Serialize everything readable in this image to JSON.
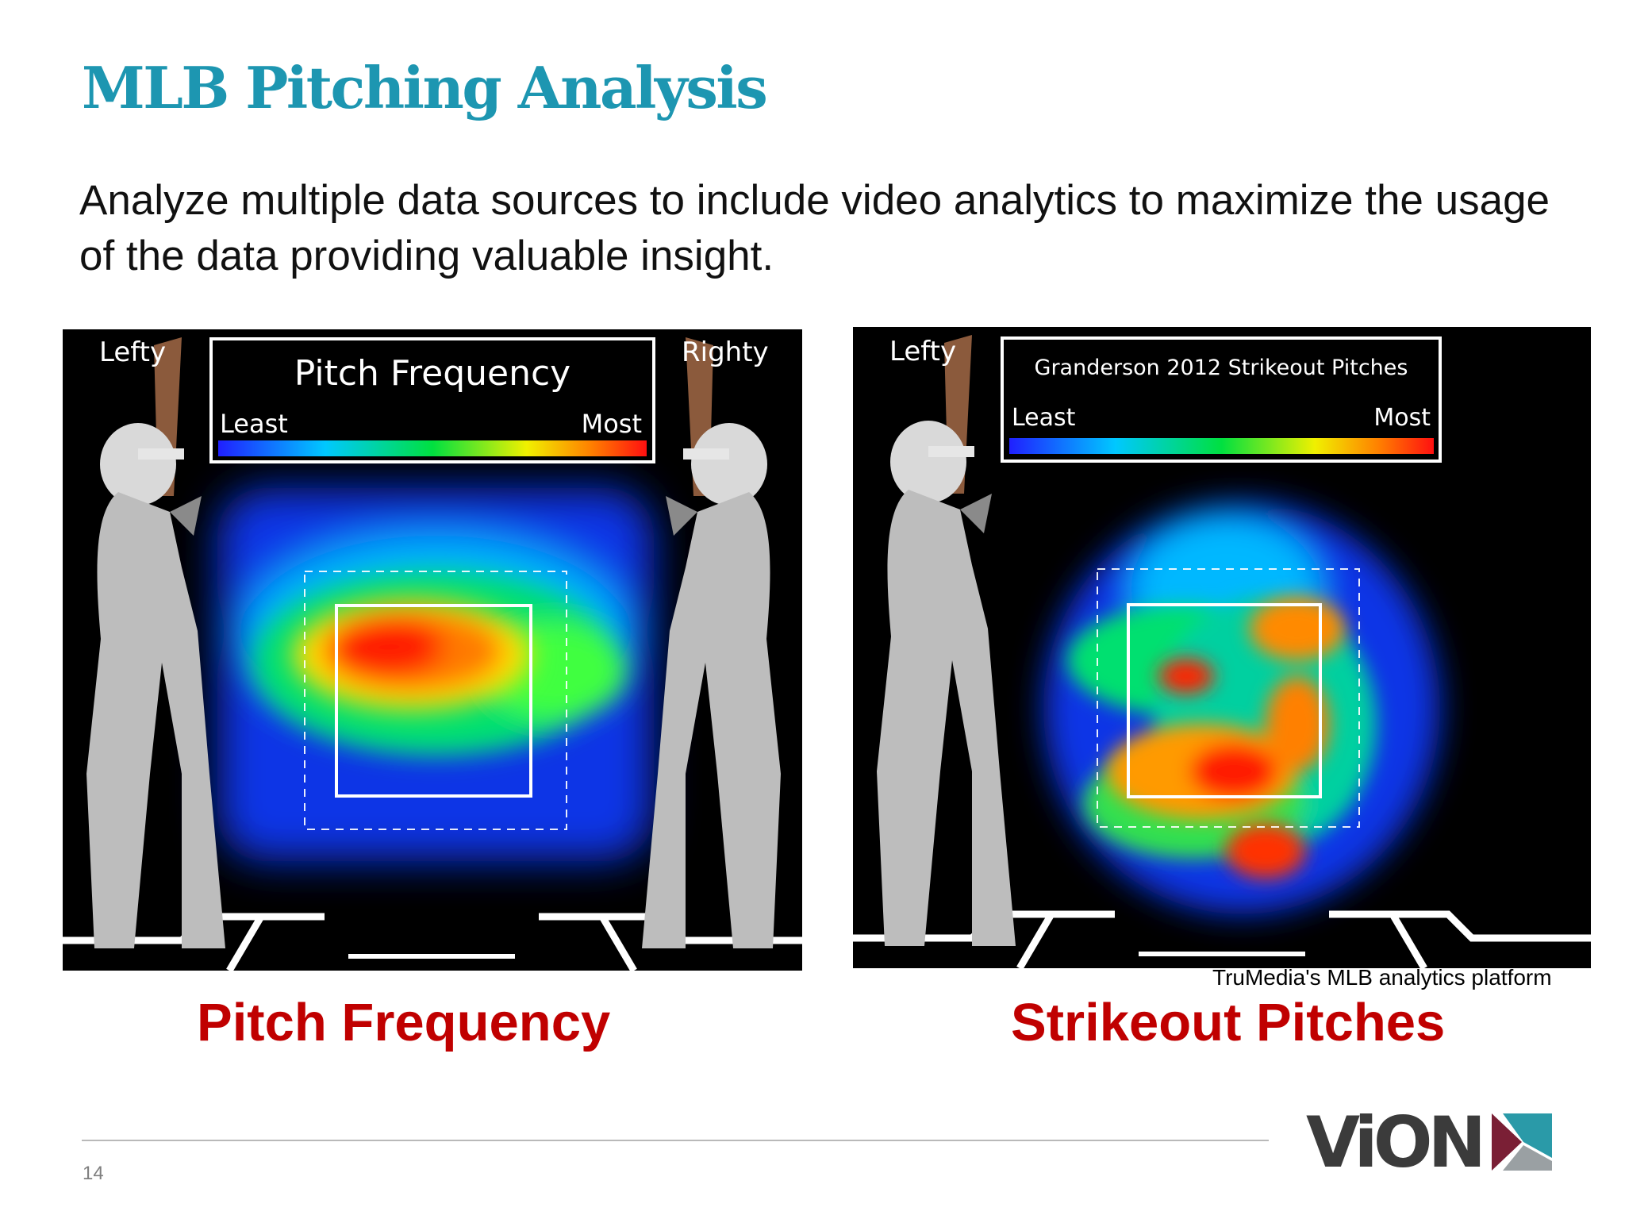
{
  "slide": {
    "title": "MLB Pitching Analysis",
    "subtitle": "Analyze multiple data sources to include video analytics to maximize the usage of the data providing valuable insight.",
    "page_number": "14",
    "credit": "TruMedia's MLB analytics platform",
    "logo_text": "ViON"
  },
  "heatmaps": [
    {
      "caption": "Pitch Frequency",
      "lefty_label": "Lefty",
      "righty_label": "Righty",
      "legend_title": "Pitch Frequency",
      "legend_least": "Least",
      "legend_most": "Most"
    },
    {
      "caption": "Strikeout Pitches",
      "lefty_label": "Lefty",
      "legend_title": "Granderson 2012 Strikeout Pitches",
      "legend_least": "Least",
      "legend_most": "Most"
    }
  ],
  "colors": {
    "title": "#1d96b1",
    "caption": "#c00000",
    "logo_dark": "#3b3b3b",
    "logo_maroon": "#7a1f35",
    "logo_teal": "#2a9aa8"
  }
}
